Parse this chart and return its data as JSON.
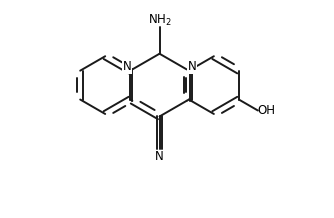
{
  "background": "#ffffff",
  "bond_color": "#1a1a1a",
  "bond_width": 1.4,
  "figsize": [
    3.34,
    2.18
  ],
  "dpi": 100,
  "xlim": [
    -1.7,
    1.9
  ],
  "ylim": [
    -1.55,
    1.35
  ]
}
